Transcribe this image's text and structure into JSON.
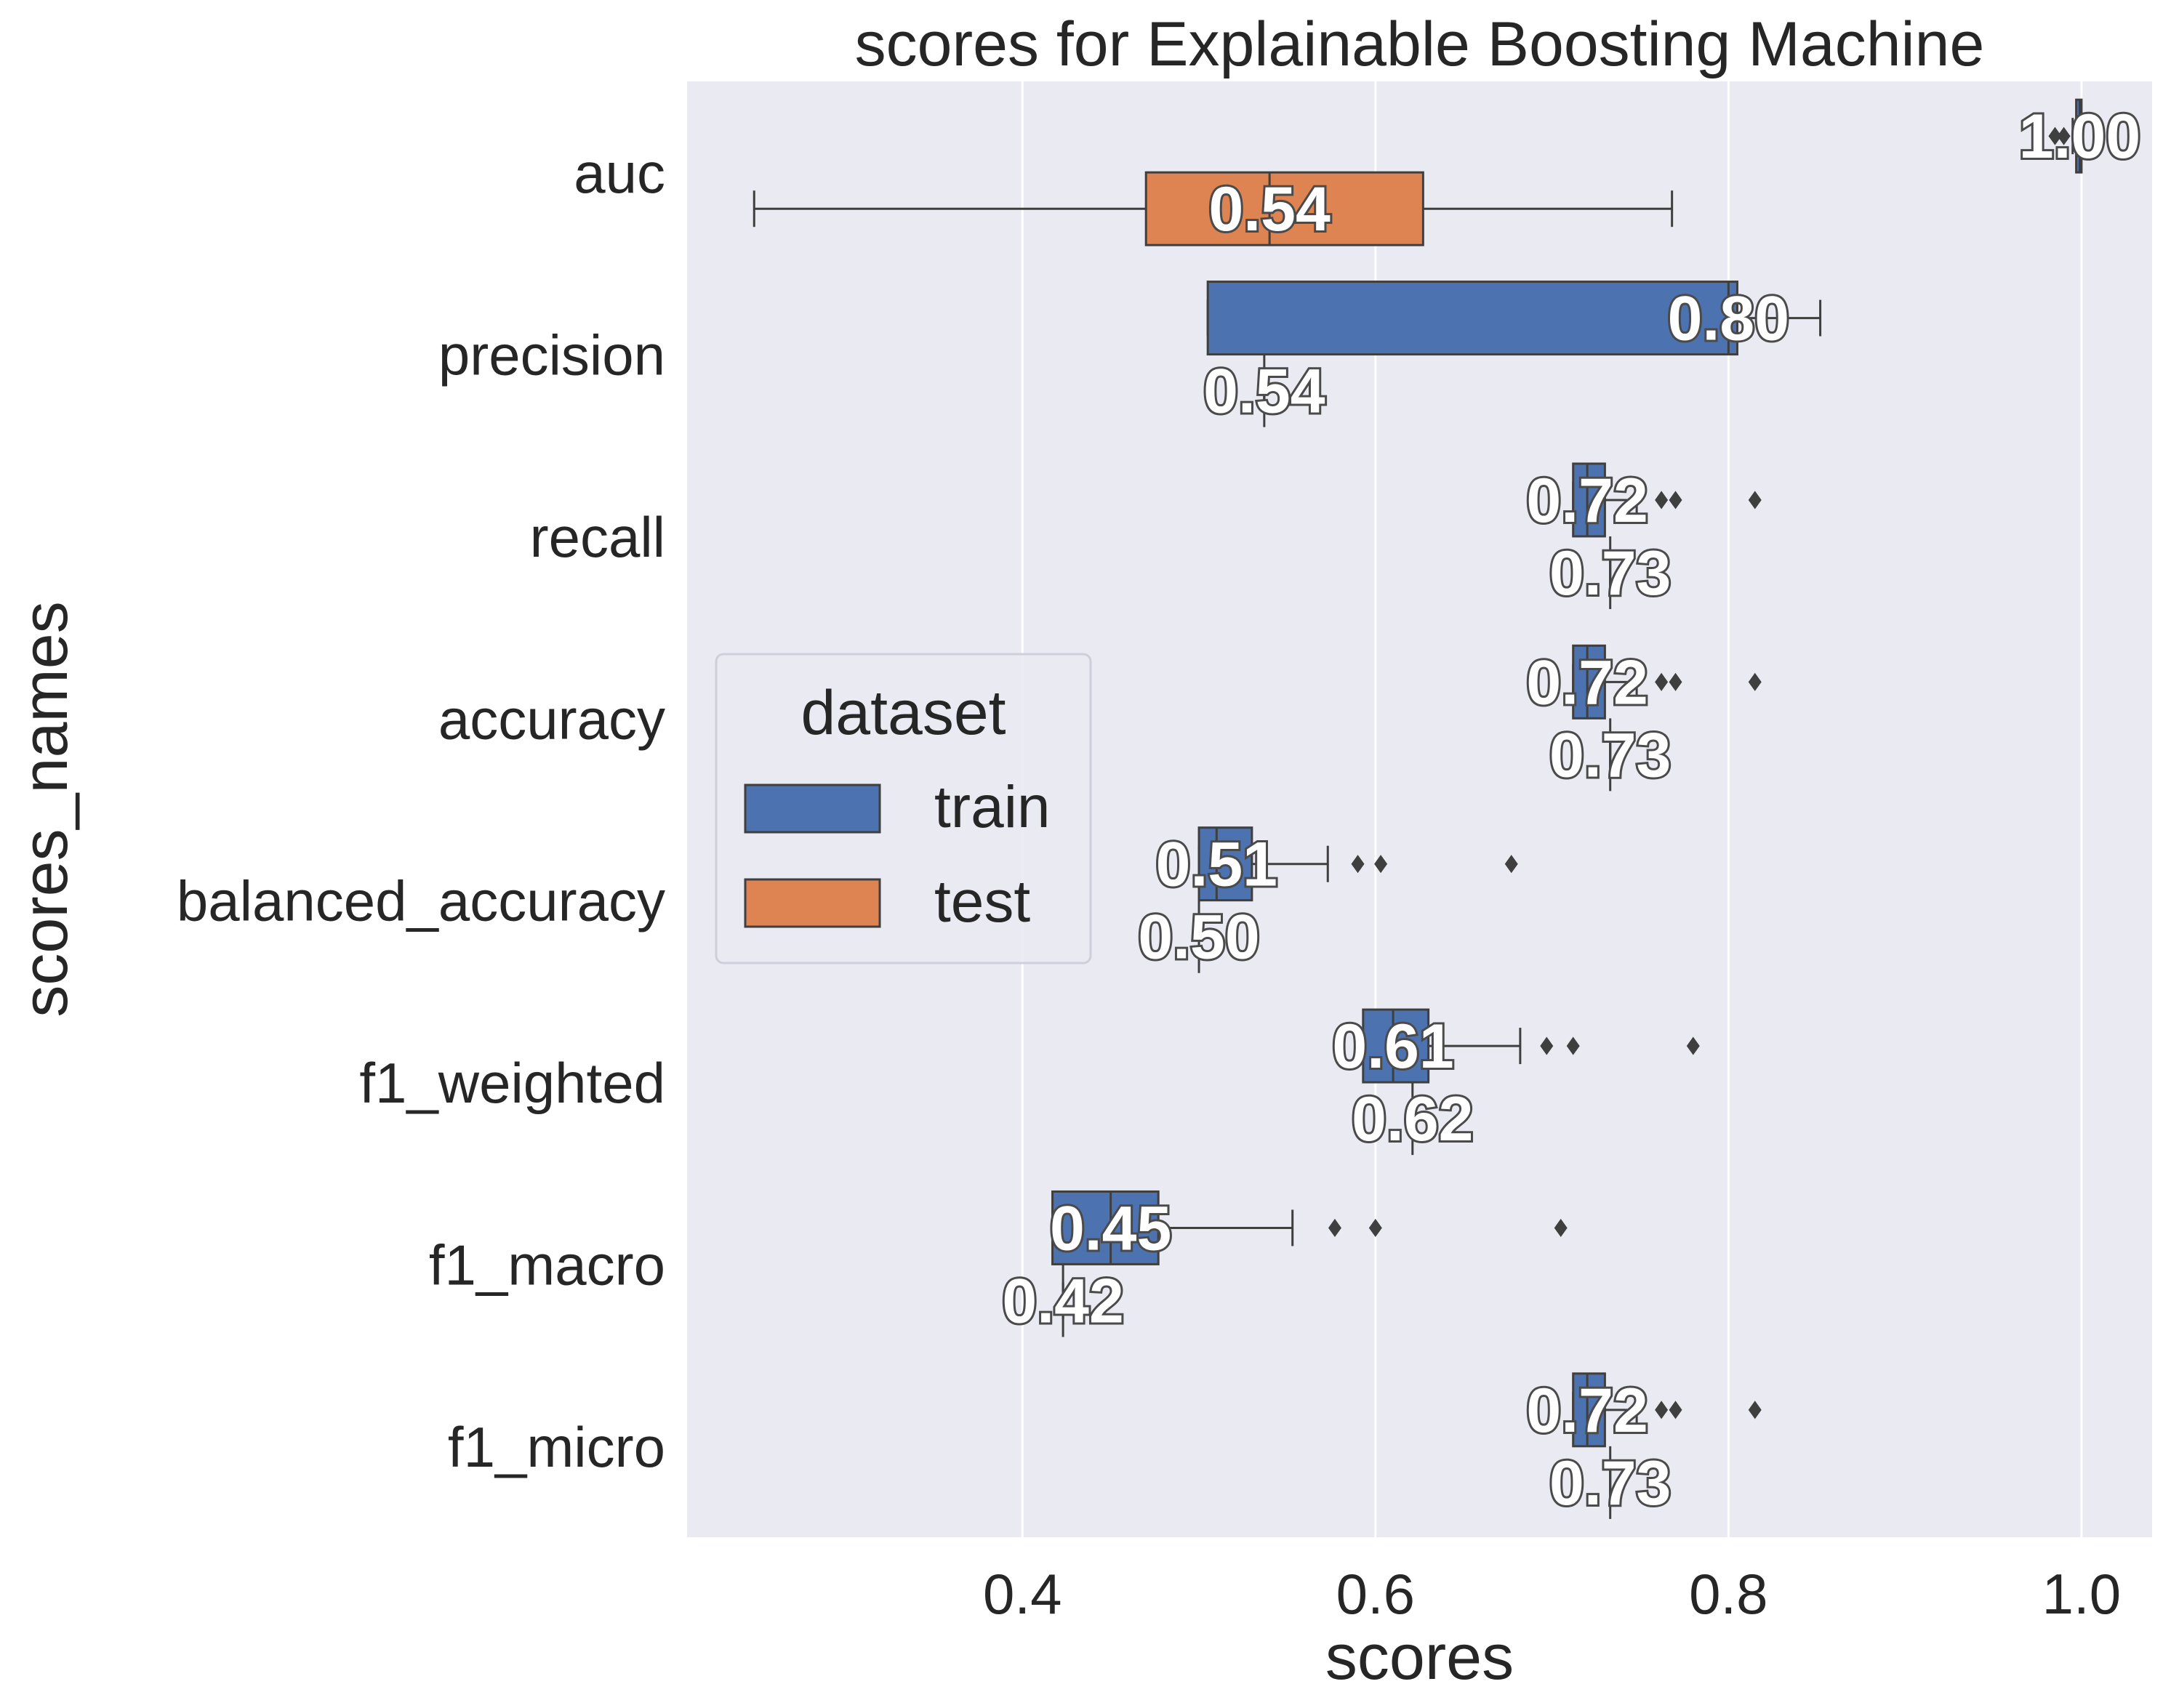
{
  "chart_data": {
    "type": "box",
    "orientation": "horizontal",
    "title": "scores for Explainable Boosting Machine",
    "xlabel": "scores",
    "ylabel": "scores_names",
    "xlim": [
      0.21,
      1.04
    ],
    "xticks": [
      0.4,
      0.6,
      0.8,
      1.0
    ],
    "xtick_labels": [
      "0.4",
      "0.6",
      "0.8",
      "1.0"
    ],
    "grid": true,
    "background": "#eaeaf2",
    "categories": [
      "auc",
      "precision",
      "recall",
      "accuracy",
      "balanced_accuracy",
      "f1_weighted",
      "f1_macro",
      "f1_micro"
    ],
    "legend": {
      "title": "dataset",
      "placement": "center-left",
      "entries": [
        {
          "label": "train",
          "color": "#4c72b0"
        },
        {
          "label": "test",
          "color": "#dd8452"
        }
      ]
    },
    "series": [
      {
        "name": "train",
        "color": "#4c72b0",
        "boxes": [
          {
            "category": "auc",
            "q1": 0.997,
            "median": 0.999,
            "q3": 1.0,
            "whisker_low": 0.995,
            "whisker_high": 1.0,
            "outliers": [
              0.985,
              0.99
            ],
            "label": "1.00"
          },
          {
            "category": "precision",
            "q1": 0.505,
            "median": 0.8,
            "q3": 0.805,
            "whisker_low": 0.505,
            "whisker_high": 0.852,
            "outliers": [],
            "label": "0.80"
          },
          {
            "category": "recall",
            "q1": 0.712,
            "median": 0.72,
            "q3": 0.73,
            "whisker_low": 0.712,
            "whisker_high": 0.748,
            "outliers": [
              0.762,
              0.77,
              0.815
            ],
            "label": "0.72"
          },
          {
            "category": "accuracy",
            "q1": 0.712,
            "median": 0.72,
            "q3": 0.73,
            "whisker_low": 0.712,
            "whisker_high": 0.748,
            "outliers": [
              0.762,
              0.77,
              0.815
            ],
            "label": "0.72"
          },
          {
            "category": "balanced_accuracy",
            "q1": 0.5,
            "median": 0.51,
            "q3": 0.53,
            "whisker_low": 0.5,
            "whisker_high": 0.573,
            "outliers": [
              0.59,
              0.603,
              0.677
            ],
            "label": "0.51"
          },
          {
            "category": "f1_weighted",
            "q1": 0.593,
            "median": 0.61,
            "q3": 0.63,
            "whisker_low": 0.593,
            "whisker_high": 0.682,
            "outliers": [
              0.697,
              0.712,
              0.78
            ],
            "label": "0.61"
          },
          {
            "category": "f1_macro",
            "q1": 0.417,
            "median": 0.45,
            "q3": 0.477,
            "whisker_low": 0.417,
            "whisker_high": 0.553,
            "outliers": [
              0.577,
              0.6,
              0.705
            ],
            "label": "0.45"
          },
          {
            "category": "f1_micro",
            "q1": 0.712,
            "median": 0.72,
            "q3": 0.73,
            "whisker_low": 0.712,
            "whisker_high": 0.748,
            "outliers": [
              0.762,
              0.77,
              0.815
            ],
            "label": "0.72"
          }
        ]
      },
      {
        "name": "test",
        "color": "#dd8452",
        "boxes": [
          {
            "category": "auc",
            "q1": 0.47,
            "median": 0.54,
            "q3": 0.627,
            "whisker_low": 0.248,
            "whisker_high": 0.768,
            "outliers": [],
            "label": "0.54"
          },
          {
            "category": "precision",
            "q1": 0.537,
            "median": 0.537,
            "q3": 0.537,
            "whisker_low": 0.537,
            "whisker_high": 0.537,
            "outliers": [],
            "label": "0.54"
          },
          {
            "category": "recall",
            "q1": 0.733,
            "median": 0.733,
            "q3": 0.733,
            "whisker_low": 0.733,
            "whisker_high": 0.733,
            "outliers": [],
            "label": "0.73"
          },
          {
            "category": "accuracy",
            "q1": 0.733,
            "median": 0.733,
            "q3": 0.733,
            "whisker_low": 0.733,
            "whisker_high": 0.733,
            "outliers": [],
            "label": "0.73"
          },
          {
            "category": "balanced_accuracy",
            "q1": 0.5,
            "median": 0.5,
            "q3": 0.5,
            "whisker_low": 0.5,
            "whisker_high": 0.5,
            "outliers": [],
            "label": "0.50"
          },
          {
            "category": "f1_weighted",
            "q1": 0.621,
            "median": 0.621,
            "q3": 0.621,
            "whisker_low": 0.621,
            "whisker_high": 0.621,
            "outliers": [],
            "label": "0.62"
          },
          {
            "category": "f1_macro",
            "q1": 0.423,
            "median": 0.423,
            "q3": 0.423,
            "whisker_low": 0.423,
            "whisker_high": 0.423,
            "outliers": [],
            "label": "0.42"
          },
          {
            "category": "f1_micro",
            "q1": 0.733,
            "median": 0.733,
            "q3": 0.733,
            "whisker_low": 0.733,
            "whisker_high": 0.733,
            "outliers": [],
            "label": "0.73"
          }
        ]
      }
    ]
  }
}
